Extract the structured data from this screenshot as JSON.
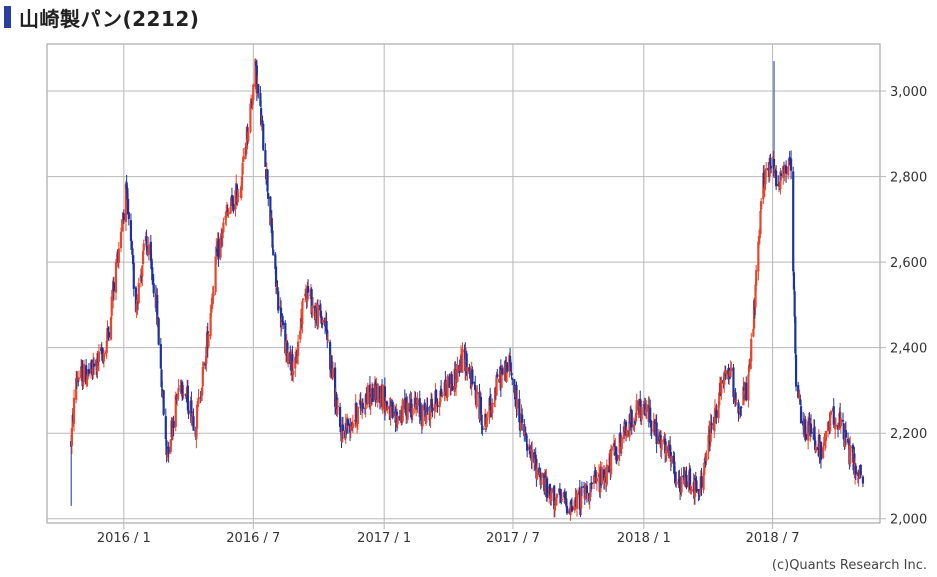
{
  "title": "山崎製パン(2212)",
  "credit": "(c)Quants Research Inc.",
  "colors": {
    "up": "#e8452a",
    "down": "#1c32a0",
    "grid": "#b8b8b8",
    "frame": "#999999",
    "marker": "#2a3fa0"
  },
  "chart_data": {
    "type": "candlestick",
    "title": "山崎製パン(2212)",
    "ylim": [
      1990,
      3110
    ],
    "yticks": [
      2000,
      2200,
      2400,
      2600,
      2800,
      3000
    ],
    "ytick_labels": [
      "2,000",
      "2,200",
      "2,400",
      "2,600",
      "2,800",
      "3,000"
    ],
    "y_axis_side": "right",
    "xlim": [
      "2015-09-15",
      "2018-11-29"
    ],
    "xticks": [
      "2016-01-01",
      "2016-07-01",
      "2017-01-01",
      "2017-07-01",
      "2018-01-01",
      "2018-07-01"
    ],
    "xtick_labels": [
      "2016 / 1",
      "2016 / 7",
      "2017 / 1",
      "2017 / 7",
      "2018 / 1",
      "2018 / 7"
    ],
    "grid": true,
    "legend": "none",
    "up_color": "#e8452a",
    "down_color": "#1c32a0",
    "approx_price_path": [
      [
        "2015-10-19",
        2180
      ],
      [
        "2015-10-26",
        2330
      ],
      [
        "2015-11-16",
        2340
      ],
      [
        "2015-12-07",
        2400
      ],
      [
        "2015-12-28",
        2680
      ],
      [
        "2016-01-04",
        2760
      ],
      [
        "2016-01-18",
        2500
      ],
      [
        "2016-02-01",
        2650
      ],
      [
        "2016-02-15",
        2520
      ],
      [
        "2016-03-01",
        2150
      ],
      [
        "2016-03-21",
        2330
      ],
      [
        "2016-04-11",
        2220
      ],
      [
        "2016-04-25",
        2380
      ],
      [
        "2016-05-09",
        2600
      ],
      [
        "2016-05-23",
        2700
      ],
      [
        "2016-06-13",
        2780
      ],
      [
        "2016-06-27",
        2960
      ],
      [
        "2016-07-04",
        3050
      ],
      [
        "2016-07-18",
        2840
      ],
      [
        "2016-08-01",
        2560
      ],
      [
        "2016-08-15",
        2400
      ],
      [
        "2016-08-29",
        2350
      ],
      [
        "2016-09-12",
        2550
      ],
      [
        "2016-09-26",
        2480
      ],
      [
        "2016-10-10",
        2460
      ],
      [
        "2016-10-31",
        2200
      ],
      [
        "2016-11-21",
        2240
      ],
      [
        "2016-12-05",
        2280
      ],
      [
        "2016-12-26",
        2300
      ],
      [
        "2017-01-16",
        2230
      ],
      [
        "2017-02-06",
        2270
      ],
      [
        "2017-02-27",
        2240
      ],
      [
        "2017-03-20",
        2290
      ],
      [
        "2017-04-10",
        2330
      ],
      [
        "2017-04-24",
        2380
      ],
      [
        "2017-05-08",
        2300
      ],
      [
        "2017-05-22",
        2220
      ],
      [
        "2017-06-12",
        2330
      ],
      [
        "2017-06-26",
        2360
      ],
      [
        "2017-07-10",
        2240
      ],
      [
        "2017-07-24",
        2150
      ],
      [
        "2017-08-07",
        2110
      ],
      [
        "2017-08-21",
        2050
      ],
      [
        "2017-09-11",
        2040
      ],
      [
        "2017-09-25",
        2030
      ],
      [
        "2017-10-09",
        2060
      ],
      [
        "2017-10-23",
        2080
      ],
      [
        "2017-11-06",
        2100
      ],
      [
        "2017-11-20",
        2150
      ],
      [
        "2017-12-04",
        2190
      ],
      [
        "2017-12-18",
        2250
      ],
      [
        "2018-01-08",
        2250
      ],
      [
        "2018-01-22",
        2180
      ],
      [
        "2018-02-05",
        2150
      ],
      [
        "2018-02-19",
        2070
      ],
      [
        "2018-03-05",
        2100
      ],
      [
        "2018-03-19",
        2050
      ],
      [
        "2018-04-02",
        2180
      ],
      [
        "2018-04-16",
        2280
      ],
      [
        "2018-04-30",
        2350
      ],
      [
        "2018-05-14",
        2260
      ],
      [
        "2018-05-28",
        2310
      ],
      [
        "2018-06-11",
        2620
      ],
      [
        "2018-06-18",
        2800
      ],
      [
        "2018-07-02",
        2830
      ],
      [
        "2018-07-09",
        2790
      ],
      [
        "2018-07-23",
        2830
      ],
      [
        "2018-07-27",
        2800
      ],
      [
        "2018-08-03",
        2300
      ],
      [
        "2018-08-13",
        2220
      ],
      [
        "2018-08-27",
        2200
      ],
      [
        "2018-09-10",
        2150
      ],
      [
        "2018-09-24",
        2250
      ],
      [
        "2018-10-08",
        2200
      ],
      [
        "2018-10-22",
        2130
      ],
      [
        "2018-11-05",
        2090
      ]
    ],
    "notable_highs": [
      [
        "2016-07-05",
        3055
      ],
      [
        "2018-07-03",
        3070
      ]
    ],
    "notable_lows": [
      [
        "2015-10-19",
        2030
      ],
      [
        "2017-09-20",
        1995
      ]
    ]
  }
}
